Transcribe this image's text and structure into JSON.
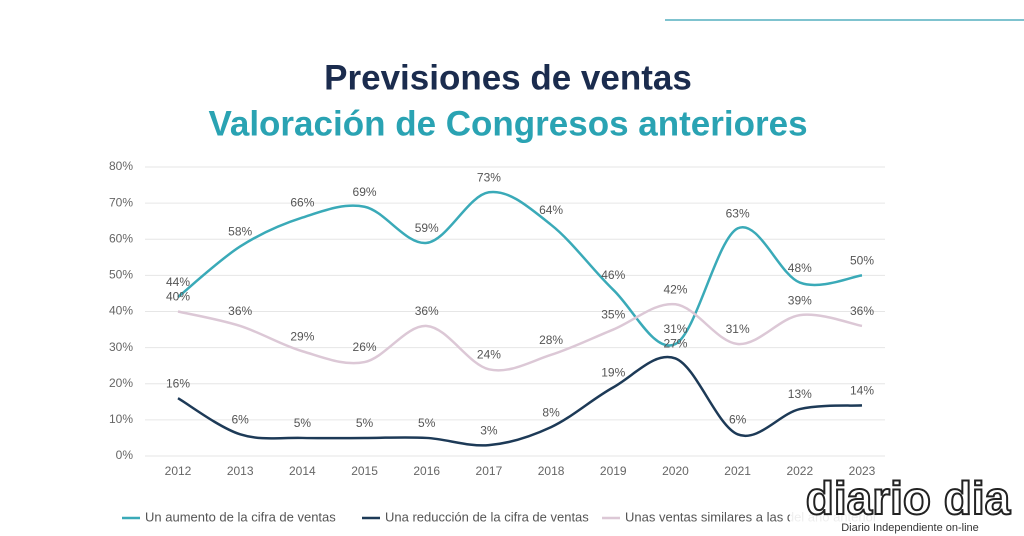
{
  "chart_data": {
    "type": "line",
    "title": "Previsiones de ventas",
    "subtitle": "Valoración de Congresos anteriores",
    "categories": [
      "2012",
      "2013",
      "2014",
      "2015",
      "2016",
      "2017",
      "2018",
      "2019",
      "2020",
      "2021",
      "2022",
      "2023"
    ],
    "series": [
      {
        "name": "Un aumento de la cifra de ventas",
        "color": "#3aaab8",
        "values": [
          44,
          58,
          66,
          69,
          59,
          73,
          64,
          46,
          31,
          63,
          48,
          50
        ],
        "value_labels": [
          "44%",
          "58%",
          "66%",
          "69%",
          "59%",
          "73%",
          "64%",
          "46%",
          "31%",
          "63%",
          "48%",
          "50%"
        ]
      },
      {
        "name": "Una reducción de la cifra de ventas",
        "color": "#1d3a57",
        "values": [
          16,
          6,
          5,
          5,
          5,
          3,
          8,
          19,
          27,
          6,
          13,
          14
        ],
        "value_labels": [
          "16%",
          "6%",
          "5%",
          "5%",
          "5%",
          "3%",
          "8%",
          "19%",
          "27%",
          "6%",
          "13%",
          "14%"
        ]
      },
      {
        "name": "Unas ventas similares a las del año anterior",
        "color": "#dcc8d6",
        "values": [
          40,
          36,
          29,
          26,
          36,
          24,
          28,
          35,
          42,
          31,
          39,
          36
        ],
        "value_labels": [
          "40%",
          "36%",
          "29%",
          "26%",
          "36%",
          "24%",
          "28%",
          "35%",
          "42%",
          "31%",
          "39%",
          "36%"
        ]
      }
    ],
    "ylim": [
      0,
      80
    ],
    "yticks": [
      {
        "value": 0,
        "label": "0%"
      },
      {
        "value": 10,
        "label": "10%"
      },
      {
        "value": 20,
        "label": "20%"
      },
      {
        "value": 30,
        "label": "30%"
      },
      {
        "value": 40,
        "label": "40%"
      },
      {
        "value": 50,
        "label": "50%"
      },
      {
        "value": 60,
        "label": "60%"
      },
      {
        "value": 70,
        "label": "70%"
      },
      {
        "value": 80,
        "label": "80%"
      }
    ],
    "grid": true,
    "smooth": true,
    "legend": "bottom"
  },
  "watermark": {
    "title": "diario dia",
    "subtitle": "Diario Independiente on-line"
  }
}
